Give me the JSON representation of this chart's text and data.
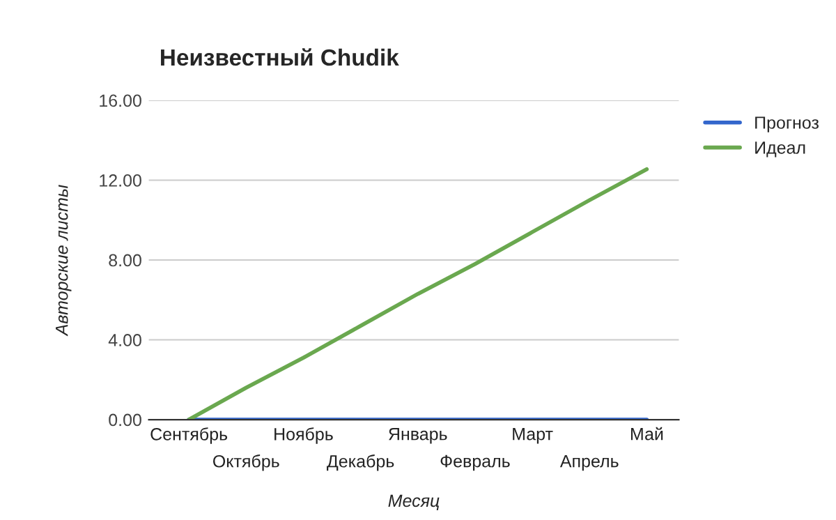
{
  "chart_data": {
    "type": "line",
    "title": "Неизвестный Chudik",
    "xlabel": "Месяц",
    "ylabel": "Авторские листы",
    "categories": [
      "Сентябрь",
      "Октябрь",
      "Ноябрь",
      "Декабрь",
      "Январь",
      "Февраль",
      "Март",
      "Апрель",
      "Май"
    ],
    "series": [
      {
        "name": "Прогноз",
        "color": "#3366cc",
        "values": [
          0,
          0,
          0,
          0,
          0,
          0,
          0,
          0,
          0
        ]
      },
      {
        "name": "Идеал",
        "color": "#6aa84f",
        "values": [
          0,
          1.6,
          3.1,
          4.7,
          6.3,
          7.8,
          9.4,
          11.0,
          12.55
        ]
      }
    ],
    "ylim": [
      0,
      16
    ],
    "yticks": [
      {
        "value": 0,
        "label": "0.00"
      },
      {
        "value": 4,
        "label": "4.00"
      },
      {
        "value": 8,
        "label": "8.00"
      },
      {
        "value": 12,
        "label": "12.00"
      },
      {
        "value": 16,
        "label": "16.00"
      }
    ],
    "grid": "y",
    "legend": "top right",
    "marker": "none",
    "line_style": "solid"
  }
}
